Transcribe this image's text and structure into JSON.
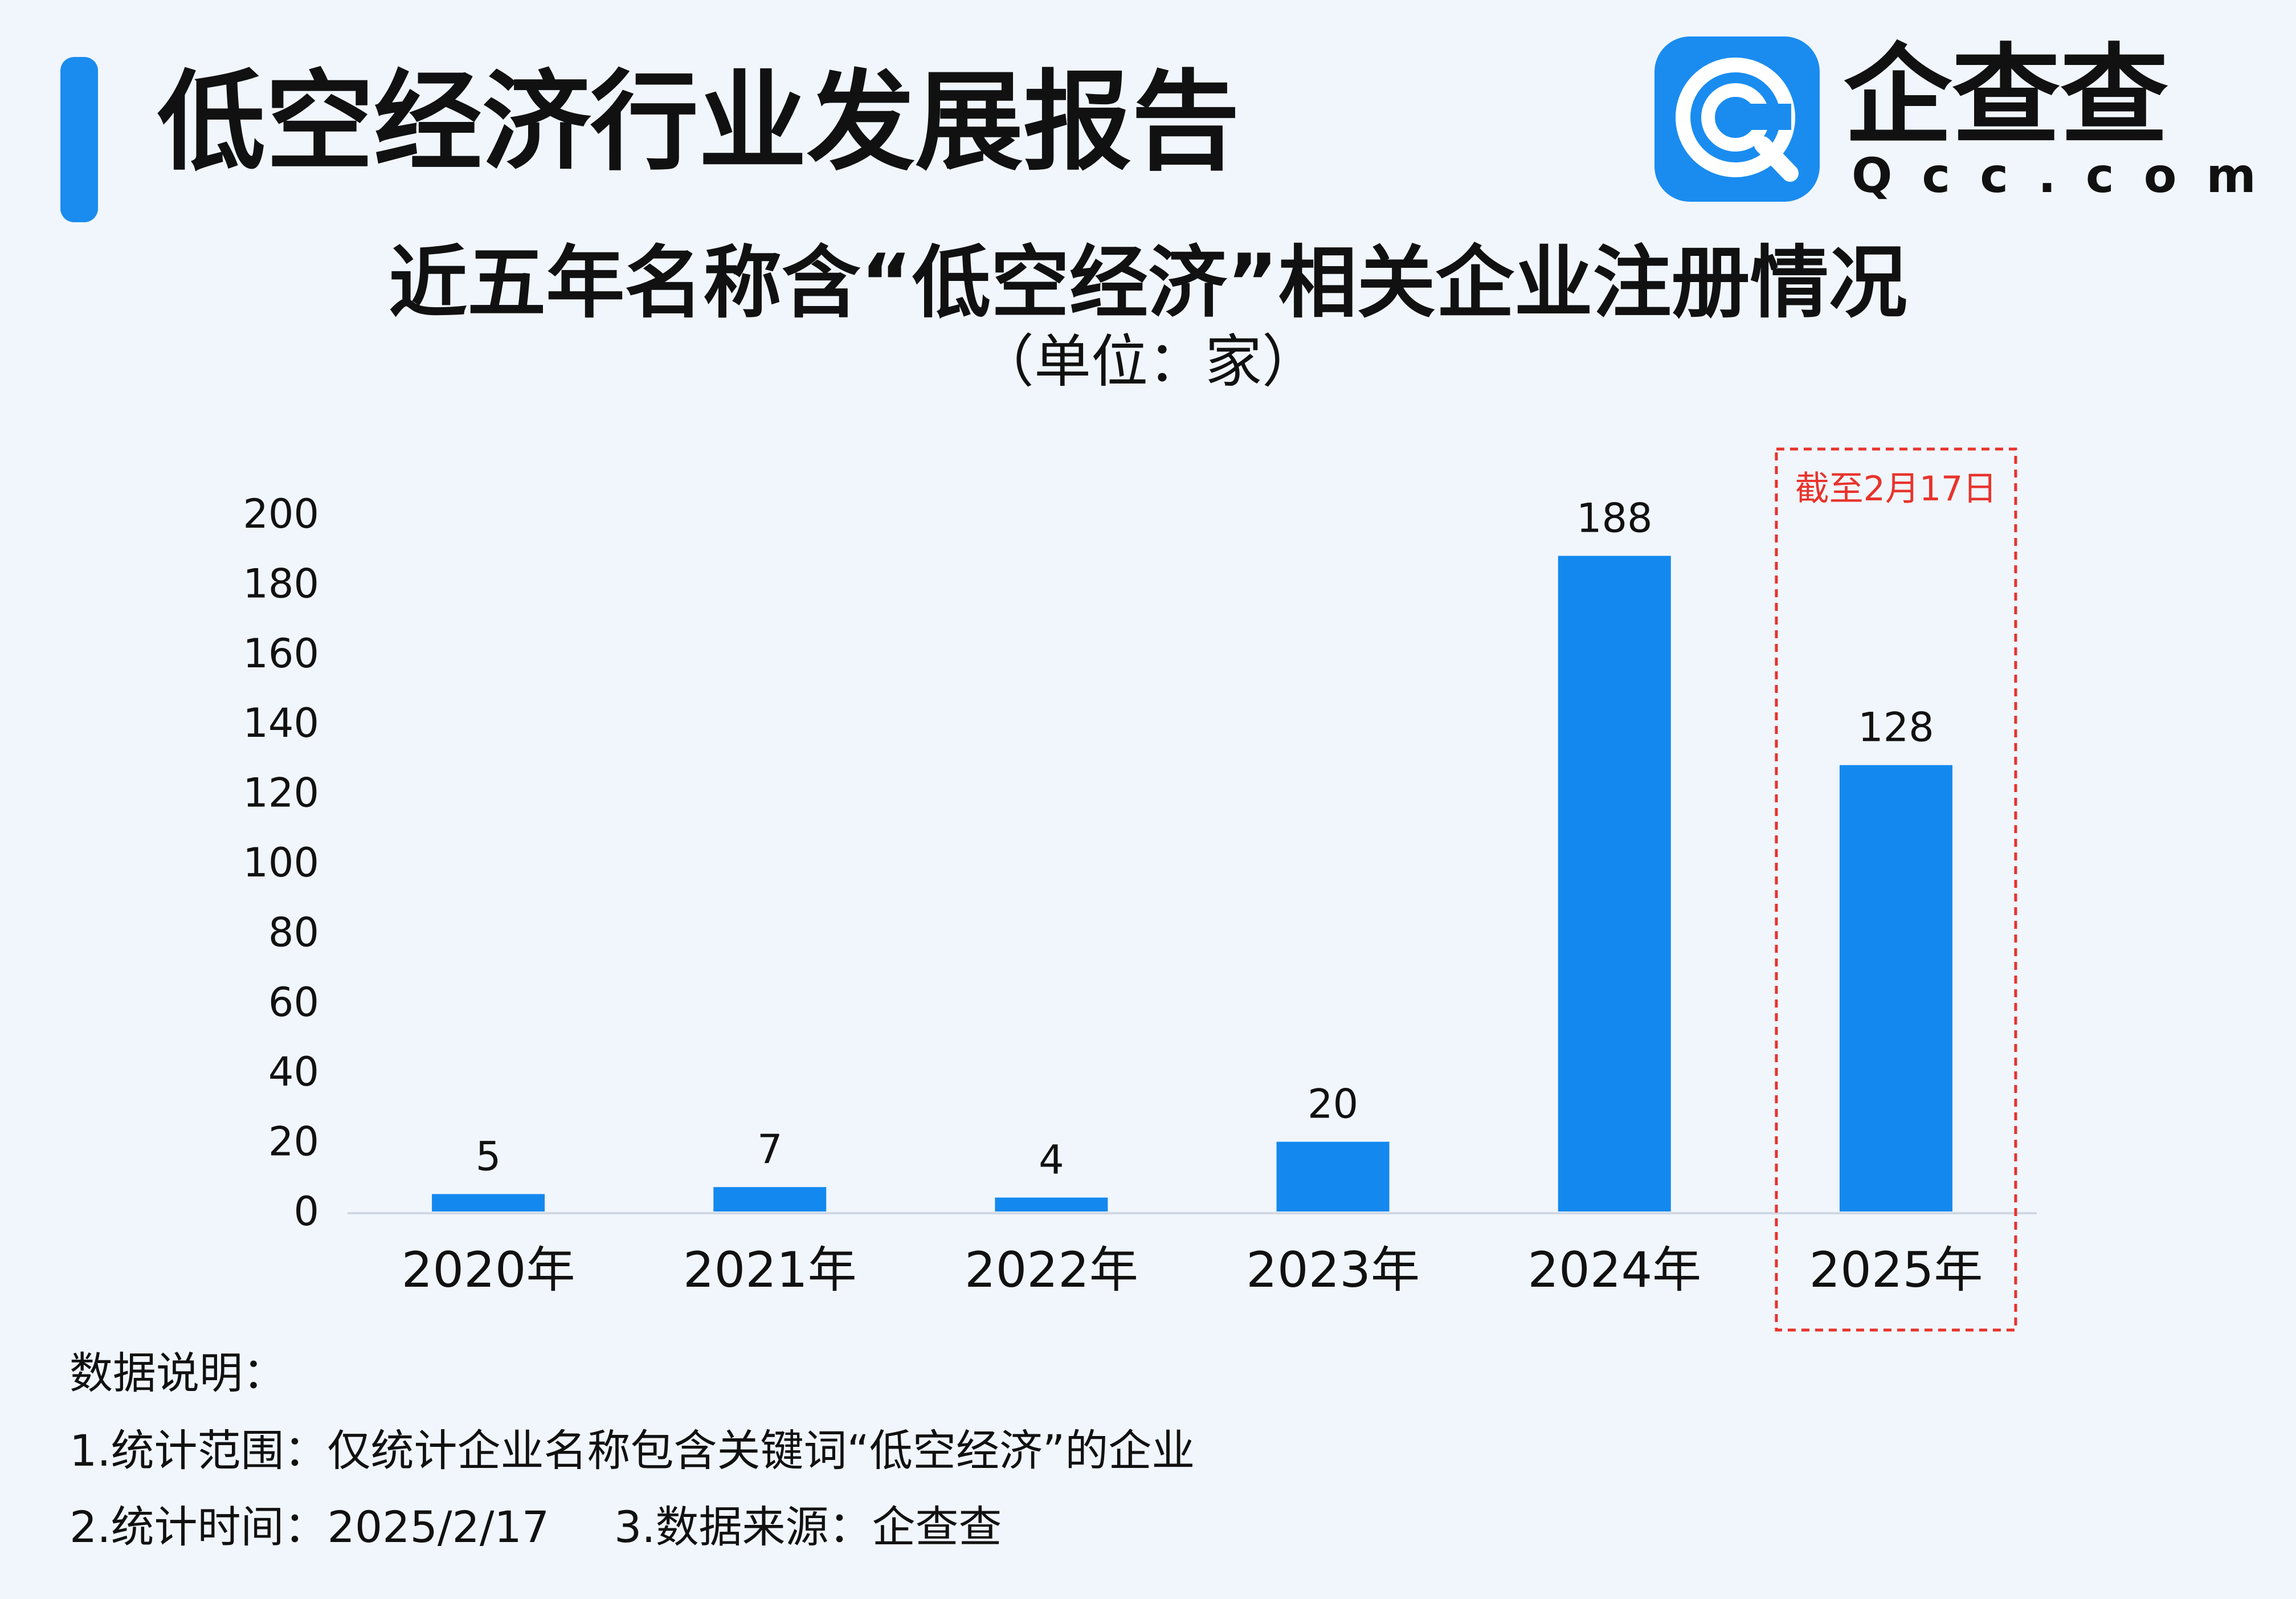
{
  "header": {
    "title": "低空经济行业发展报告",
    "accent_color": "#1a8cf0"
  },
  "logo": {
    "icon": "qcc-logo-icon",
    "name": "企查查",
    "domain": "Qcc.com"
  },
  "chart_data": {
    "type": "bar",
    "title": "近五年名称含“低空经济”相关企业注册情况",
    "subtitle": "（单位：家）",
    "categories": [
      "2020年",
      "2021年",
      "2022年",
      "2023年",
      "2024年",
      "2025年"
    ],
    "values": [
      5,
      7,
      4,
      20,
      188,
      128
    ],
    "data_labels": [
      "5",
      "7",
      "4",
      "20",
      "188",
      "128"
    ],
    "ylim": [
      0,
      200
    ],
    "yticks": [
      0,
      20,
      40,
      60,
      80,
      100,
      120,
      140,
      160,
      180,
      200
    ],
    "grid": false,
    "bar_color": "#1389ef",
    "highlight": {
      "category": "2025年",
      "label": "截至2月17日",
      "color": "#e8332b"
    }
  },
  "notes": {
    "heading": "数据说明：",
    "scope": "1.统计范围：仅统计企业名称包含关键词“低空经济”的企业",
    "time": "2.统计时间：2025/2/17",
    "source": "3.数据来源：企查查"
  }
}
